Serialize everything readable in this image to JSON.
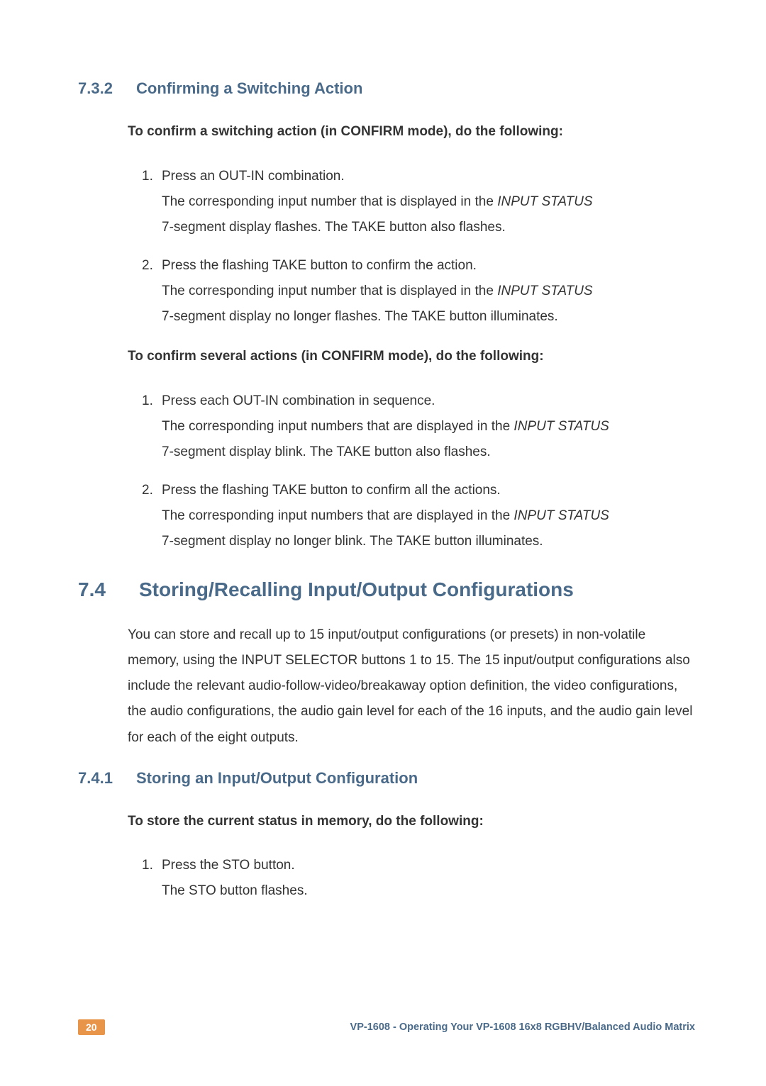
{
  "colors": {
    "heading": "#4a6a8a",
    "body_text": "#333333",
    "page_badge_bg": "#e8954a",
    "page_badge_fg": "#ffffff",
    "background": "#ffffff"
  },
  "typography": {
    "h2_fontsize": 28,
    "h3_fontsize": 22,
    "body_fontsize": 19,
    "footer_fontsize": 14.5,
    "line_height": 1.9
  },
  "section_732": {
    "number": "7.3.2",
    "title": "Confirming a Switching Action",
    "intro1": "To confirm a switching action (in CONFIRM mode), do the following:",
    "list1": [
      {
        "num": "1.",
        "line1": "Press an OUT-IN combination.",
        "line2_pre": "The corresponding input number that is displayed in the ",
        "line2_italic": "INPUT STATUS",
        "line3": "7-segment display flashes. The TAKE button also flashes."
      },
      {
        "num": "2.",
        "line1": "Press the flashing TAKE button to confirm the action.",
        "line2_pre": "The corresponding input number that is displayed in the ",
        "line2_italic": "INPUT STATUS",
        "line3": "7-segment display no longer flashes. The TAKE button illuminates."
      }
    ],
    "intro2": "To confirm several actions (in CONFIRM mode), do the following:",
    "list2": [
      {
        "num": "1.",
        "line1": "Press each OUT-IN combination in sequence.",
        "line2_pre": "The corresponding input numbers that are displayed in the ",
        "line2_italic": "INPUT STATUS",
        "line3": "7-segment display blink. The TAKE button also flashes."
      },
      {
        "num": "2.",
        "line1": "Press the flashing TAKE button to confirm all the actions.",
        "line2_pre": "The corresponding input numbers that are displayed in the ",
        "line2_italic": "INPUT STATUS",
        "line3": "7-segment display no longer blink. The TAKE button illuminates."
      }
    ]
  },
  "section_74": {
    "number": "7.4",
    "title": "Storing/Recalling Input/Output Configurations",
    "para": "You can store and recall up to 15 input/output configurations (or presets) in non-volatile memory, using the INPUT SELECTOR buttons 1 to 15. The 15 input/output configurations also include the relevant audio-follow-video/breakaway option definition, the video configurations, the audio configurations, the audio gain level for each of the 16 inputs, and the audio gain level for each of the eight outputs."
  },
  "section_741": {
    "number": "7.4.1",
    "title": "Storing an Input/Output Configuration",
    "intro": "To store the current status in memory, do the following:",
    "list": [
      {
        "num": "1.",
        "line1": "Press the STO button.",
        "line2": "The STO button flashes."
      }
    ]
  },
  "footer": {
    "page_number": "20",
    "text": "VP-1608 - Operating Your VP-1608 16x8 RGBHV/Balanced Audio Matrix"
  }
}
